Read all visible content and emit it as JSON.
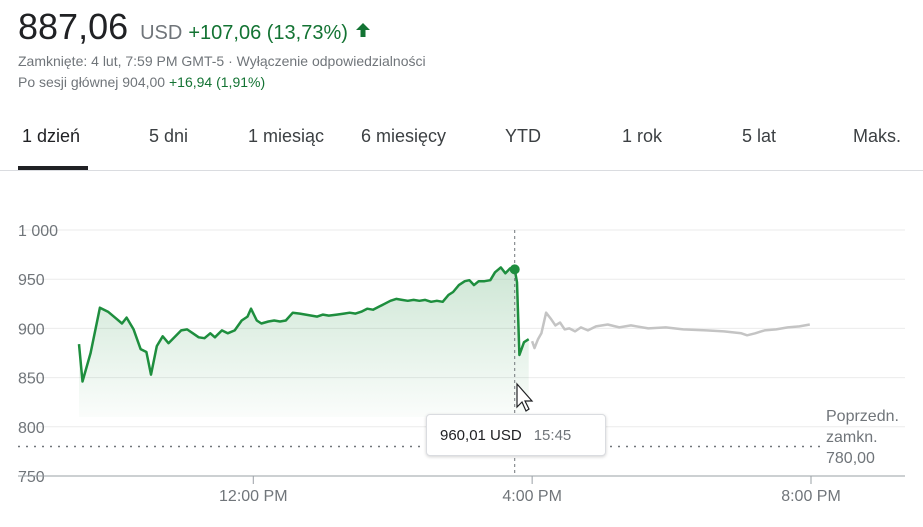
{
  "quote": {
    "price": "887,06",
    "currency": "USD",
    "change": "+107,06 (13,73%)",
    "closed_line": "Zamknięte: 4 lut, 7:59 PM GMT-5 · Wyłączenie odpowiedzialności",
    "after_hours_label": "Po sesji głównej 904,00",
    "after_hours_change": "+16,94 (1,91%)",
    "positive_color": "#137333",
    "icon": "arrow-up-icon"
  },
  "tabs": [
    {
      "label": "1 dzień",
      "active": true
    },
    {
      "label": "5 dni"
    },
    {
      "label": "1 miesiąc"
    },
    {
      "label": "6 miesięcy"
    },
    {
      "label": "YTD"
    },
    {
      "label": "1 rok"
    },
    {
      "label": "5 lat"
    },
    {
      "label": "Maks."
    }
  ],
  "tooltip": {
    "value": "960,01 USD",
    "time": "15:45"
  },
  "previous_close": {
    "line1": "Poprzedn.",
    "line2": "zamkn.",
    "line3": "780,00",
    "value": 780
  },
  "chart_data": {
    "type": "line",
    "title": "",
    "ylim": [
      750,
      1000
    ],
    "y_ticks": [
      {
        "value": 1000,
        "label": "1 000"
      },
      {
        "value": 950,
        "label": "950"
      },
      {
        "value": 900,
        "label": "900"
      },
      {
        "value": 850,
        "label": "850"
      },
      {
        "value": 800,
        "label": "800"
      },
      {
        "value": 750,
        "label": "750"
      }
    ],
    "x_range": [
      "09:30",
      "20:00"
    ],
    "x_ticks": [
      {
        "time": "12:00",
        "label": "12:00 PM"
      },
      {
        "time": "16:00",
        "label": "4:00 PM"
      },
      {
        "time": "20:00",
        "label": "8:00 PM"
      }
    ],
    "grid": true,
    "line_color": "#1e8e3e",
    "after_hours_color": "#c4c4c4",
    "hover": {
      "time": "15:45",
      "value": 960.01
    },
    "series": [
      {
        "session": "regular",
        "points": [
          [
            "09:30",
            884
          ],
          [
            "09:33",
            846
          ],
          [
            "09:40",
            875
          ],
          [
            "09:48",
            921
          ],
          [
            "09:55",
            917
          ],
          [
            "10:02",
            910
          ],
          [
            "10:07",
            905
          ],
          [
            "10:11",
            911
          ],
          [
            "10:17",
            899
          ],
          [
            "10:23",
            879
          ],
          [
            "10:28",
            876
          ],
          [
            "10:32",
            853
          ],
          [
            "10:37",
            882
          ],
          [
            "10:42",
            892
          ],
          [
            "10:47",
            885
          ],
          [
            "10:53",
            892
          ],
          [
            "10:58",
            898
          ],
          [
            "11:03",
            899
          ],
          [
            "11:08",
            895
          ],
          [
            "11:13",
            891
          ],
          [
            "11:18",
            890
          ],
          [
            "11:23",
            895
          ],
          [
            "11:27",
            891
          ],
          [
            "11:33",
            898
          ],
          [
            "11:38",
            895
          ],
          [
            "11:44",
            898
          ],
          [
            "11:50",
            908
          ],
          [
            "11:55",
            912
          ],
          [
            "11:58",
            920
          ],
          [
            "12:03",
            908
          ],
          [
            "12:07",
            905
          ],
          [
            "12:13",
            907
          ],
          [
            "12:18",
            908
          ],
          [
            "12:23",
            907
          ],
          [
            "12:28",
            908
          ],
          [
            "12:34",
            916
          ],
          [
            "12:40",
            915
          ],
          [
            "12:45",
            914
          ],
          [
            "12:50",
            913
          ],
          [
            "12:55",
            912
          ],
          [
            "13:00",
            914
          ],
          [
            "13:05",
            913
          ],
          [
            "13:12",
            914
          ],
          [
            "13:18",
            915
          ],
          [
            "13:23",
            916
          ],
          [
            "13:28",
            915
          ],
          [
            "13:33",
            917
          ],
          [
            "13:38",
            920
          ],
          [
            "13:43",
            919
          ],
          [
            "13:48",
            922
          ],
          [
            "13:53",
            925
          ],
          [
            "13:58",
            928
          ],
          [
            "14:03",
            930
          ],
          [
            "14:08",
            929
          ],
          [
            "14:13",
            928
          ],
          [
            "14:18",
            929
          ],
          [
            "14:23",
            928
          ],
          [
            "14:28",
            929
          ],
          [
            "14:33",
            927
          ],
          [
            "14:38",
            928
          ],
          [
            "14:43",
            927
          ],
          [
            "14:48",
            934
          ],
          [
            "14:52",
            937
          ],
          [
            "14:57",
            944
          ],
          [
            "15:02",
            948
          ],
          [
            "15:06",
            949
          ],
          [
            "15:10",
            944
          ],
          [
            "15:14",
            948
          ],
          [
            "15:19",
            948
          ],
          [
            "15:24",
            949
          ],
          [
            "15:28",
            957
          ],
          [
            "15:33",
            962
          ],
          [
            "15:37",
            956
          ],
          [
            "15:41",
            961
          ],
          [
            "15:45",
            960.01
          ],
          [
            "15:47",
            947
          ],
          [
            "15:49",
            873
          ],
          [
            "15:53",
            886
          ],
          [
            "15:57",
            889
          ]
        ]
      },
      {
        "session": "after-hours",
        "points": [
          [
            "16:00",
            887
          ],
          [
            "16:02",
            880
          ],
          [
            "16:05",
            889
          ],
          [
            "16:08",
            895
          ],
          [
            "16:12",
            916
          ],
          [
            "16:16",
            910
          ],
          [
            "16:20",
            903
          ],
          [
            "16:24",
            906
          ],
          [
            "16:28",
            899
          ],
          [
            "16:32",
            900
          ],
          [
            "16:37",
            897
          ],
          [
            "16:42",
            901
          ],
          [
            "16:48",
            898
          ],
          [
            "16:55",
            902
          ],
          [
            "17:05",
            904
          ],
          [
            "17:15",
            901
          ],
          [
            "17:25",
            903
          ],
          [
            "17:40",
            900
          ],
          [
            "17:55",
            901
          ],
          [
            "18:10",
            899
          ],
          [
            "18:30",
            898
          ],
          [
            "18:45",
            897
          ],
          [
            "19:00",
            895
          ],
          [
            "19:05",
            893
          ],
          [
            "19:12",
            895
          ],
          [
            "19:20",
            898
          ],
          [
            "19:30",
            899
          ],
          [
            "19:40",
            901
          ],
          [
            "19:50",
            902
          ],
          [
            "19:59",
            904
          ]
        ]
      }
    ]
  }
}
